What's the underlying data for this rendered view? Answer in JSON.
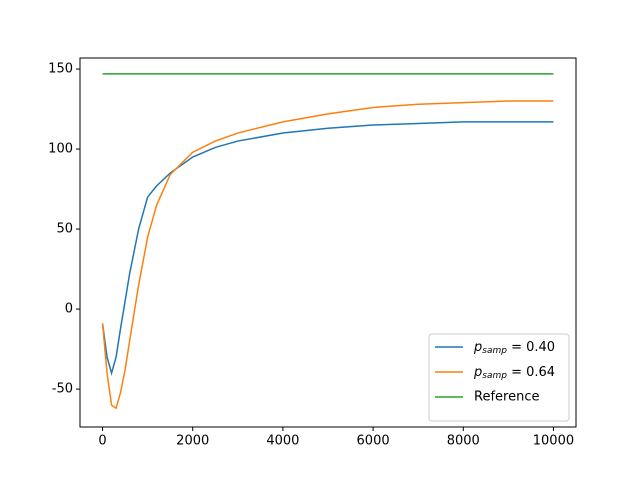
{
  "chart_data": {
    "type": "line",
    "series": [
      {
        "name": "psamp = 0.40",
        "color": "#1f77b4",
        "x": [
          0,
          100,
          200,
          300,
          400,
          500,
          600,
          800,
          1000,
          1200,
          1500,
          2000,
          2500,
          3000,
          4000,
          5000,
          6000,
          7000,
          8000,
          9000,
          10000
        ],
        "values": [
          -9,
          -30,
          -40,
          -30,
          -12,
          5,
          22,
          50,
          70,
          77,
          85,
          95,
          101,
          105,
          110,
          113,
          115,
          116,
          117,
          117,
          117
        ]
      },
      {
        "name": "psamp = 0.64",
        "color": "#ff7f0e",
        "x": [
          0,
          100,
          200,
          300,
          400,
          500,
          600,
          800,
          1000,
          1200,
          1500,
          2000,
          2500,
          3000,
          4000,
          5000,
          6000,
          7000,
          8000,
          9000,
          10000
        ],
        "values": [
          -9,
          -40,
          -60,
          -62,
          -52,
          -38,
          -20,
          15,
          45,
          65,
          84,
          98,
          105,
          110,
          117,
          122,
          126,
          128,
          129,
          130,
          130
        ]
      },
      {
        "name": "Reference",
        "color": "#2ca02c",
        "x": [
          0,
          10000
        ],
        "values": [
          147,
          147
        ]
      }
    ],
    "xlim": [
      -500,
      10500
    ],
    "ylim": [
      -73.7,
      156.9
    ],
    "xticks": [
      0,
      2000,
      4000,
      6000,
      8000,
      10000
    ],
    "yticks": [
      -50,
      0,
      50,
      100,
      150
    ],
    "legend": "lower right"
  }
}
